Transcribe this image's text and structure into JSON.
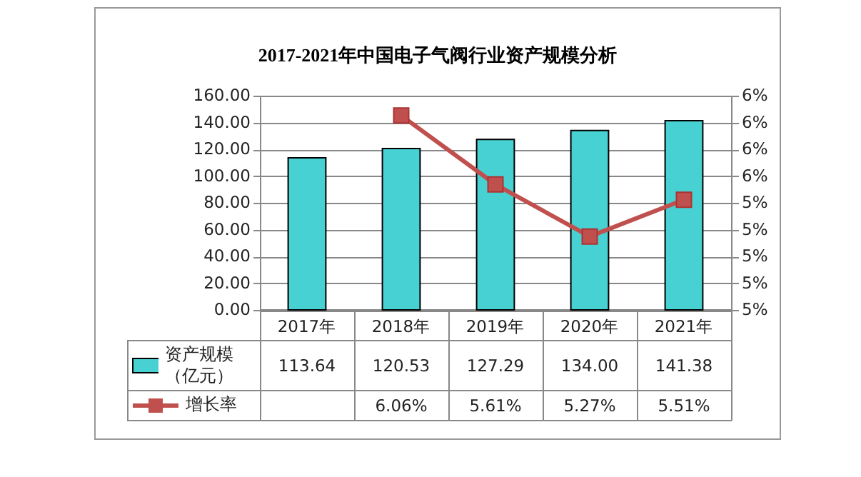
{
  "chart_data": {
    "type": "bar",
    "title": "2017-2021年中国电子气阀行业资产规模分析",
    "categories": [
      "2017年",
      "2018年",
      "2019年",
      "2020年",
      "2021年"
    ],
    "series": [
      {
        "name": "资产规模（亿元）",
        "color": "#48d1d3",
        "values": [
          113.64,
          120.53,
          127.29,
          134.0,
          141.38
        ],
        "value_labels": [
          "113.64",
          "120.53",
          "127.29",
          "134.00",
          "141.38"
        ]
      },
      {
        "name": "增长率",
        "type": "line",
        "axis": "y2",
        "color": "#c0504d",
        "values": [
          null,
          6.06,
          5.61,
          5.27,
          5.51
        ],
        "value_labels": [
          null,
          "6.06%",
          "5.61%",
          "5.27%",
          "5.51%"
        ]
      }
    ],
    "ylim": [
      0,
      160
    ],
    "yticks": [
      {
        "value": 0,
        "label": "0.00"
      },
      {
        "value": 20,
        "label": "20.00"
      },
      {
        "value": 40,
        "label": "40.00"
      },
      {
        "value": 60,
        "label": "60.00"
      },
      {
        "value": 80,
        "label": "80.00"
      },
      {
        "value": 100,
        "label": "100.00"
      },
      {
        "value": 120,
        "label": "120.00"
      },
      {
        "value": 140,
        "label": "140.00"
      },
      {
        "value": 160,
        "label": "160.00"
      }
    ],
    "y2lim": [
      4.79,
      6.19
    ],
    "y2ticks": [
      {
        "value": 4.79,
        "label": "5%"
      },
      {
        "value": 4.965,
        "label": "5%"
      },
      {
        "value": 5.14,
        "label": "5%"
      },
      {
        "value": 5.315,
        "label": "5%"
      },
      {
        "value": 5.49,
        "label": "5%"
      },
      {
        "value": 5.665,
        "label": "6%"
      },
      {
        "value": 5.84,
        "label": "6%"
      },
      {
        "value": 6.015,
        "label": "6%"
      },
      {
        "value": 6.19,
        "label": "6%"
      }
    ],
    "grid": "y",
    "legend": "bottom left",
    "marker": "square",
    "line_style": "solid"
  }
}
